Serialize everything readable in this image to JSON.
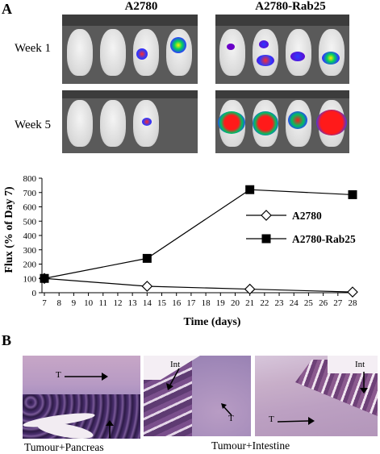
{
  "panel_a": {
    "letter": "A",
    "groups": [
      "A2780",
      "A2780-Rab25"
    ],
    "rows": [
      "Week 1",
      "Week 5"
    ]
  },
  "panel_b": {
    "letter": "B",
    "captions": [
      "Tumour+Pancreas",
      "Tumour+Intestine"
    ],
    "image_labels": {
      "img1_t": "T",
      "img2_int": "Int",
      "img2_t": "T",
      "img3_int": "Int",
      "img3_t": "T"
    }
  },
  "chart_data": {
    "type": "line",
    "xlabel": "Time (days)",
    "ylabel": "Flux (% of Day 7)",
    "xlim": [
      7,
      28
    ],
    "ylim": [
      0,
      800
    ],
    "x_ticks": [
      7,
      8,
      9,
      10,
      11,
      12,
      13,
      14,
      15,
      16,
      17,
      18,
      19,
      20,
      21,
      22,
      23,
      24,
      25,
      26,
      27,
      28
    ],
    "y_ticks": [
      0,
      100,
      200,
      300,
      400,
      500,
      600,
      700,
      800
    ],
    "legend_position": "right",
    "series": [
      {
        "name": "A2780",
        "marker": "open-diamond",
        "x": [
          7,
          14,
          21,
          28
        ],
        "y": [
          100,
          45,
          25,
          5
        ]
      },
      {
        "name": "A2780-Rab25",
        "marker": "filled-square",
        "x": [
          7,
          14,
          21,
          28
        ],
        "y": [
          100,
          240,
          720,
          685
        ]
      }
    ]
  }
}
